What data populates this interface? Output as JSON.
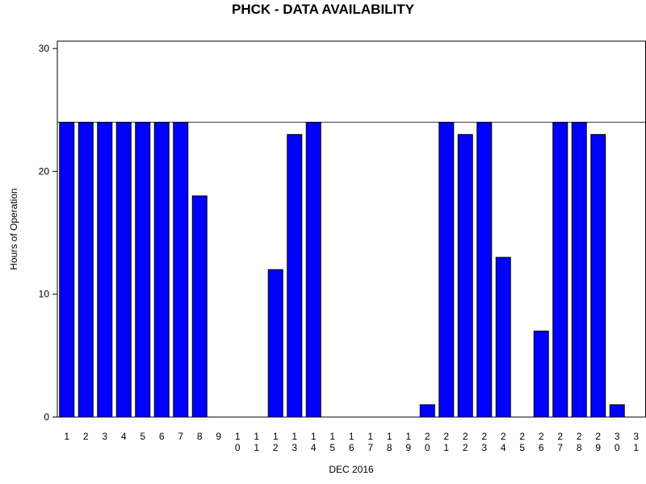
{
  "chart_data": {
    "type": "bar",
    "title": "PHCK - DATA AVAILABILITY",
    "x_label": "DEC 2016",
    "y_label": "Hours of Operation",
    "categories": [
      "1",
      "2",
      "3",
      "4",
      "5",
      "6",
      "7",
      "8",
      "9",
      "10",
      "11",
      "12",
      "13",
      "14",
      "15",
      "16",
      "17",
      "18",
      "19",
      "20",
      "21",
      "22",
      "23",
      "24",
      "25",
      "26",
      "27",
      "28",
      "29",
      "30",
      "31"
    ],
    "values": [
      24,
      24,
      24,
      24,
      24,
      24,
      24,
      18,
      0,
      0,
      0,
      12,
      23,
      24,
      0,
      0,
      0,
      0,
      0,
      1,
      24,
      23,
      24,
      13,
      0,
      7,
      24,
      24,
      23,
      1,
      0
    ],
    "color": "#0000ff",
    "ylim": [
      0,
      30.6
    ],
    "yticks": [
      0,
      10,
      20,
      30
    ],
    "reference_line": 24
  }
}
